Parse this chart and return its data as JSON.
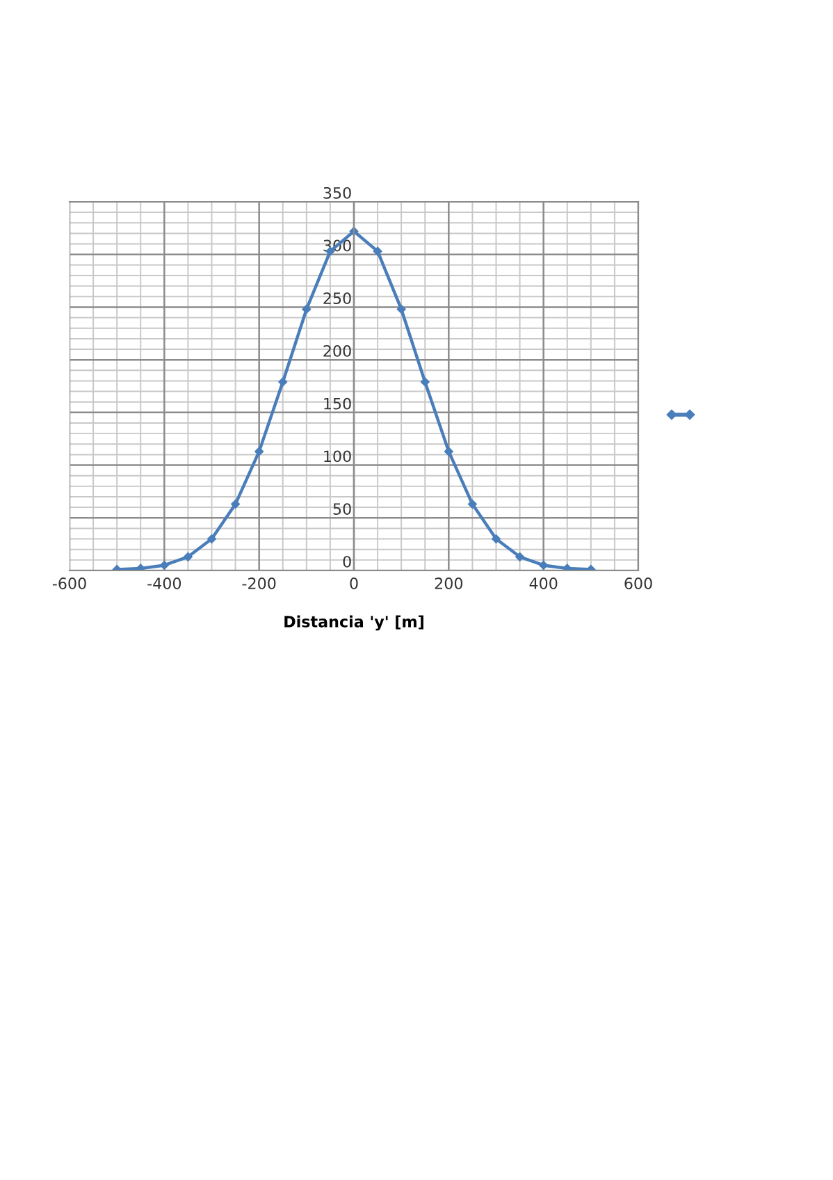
{
  "chart_data": {
    "type": "line",
    "xlabel": "Distancia 'y' [m]",
    "x": [
      -500,
      -450,
      -400,
      -350,
      -300,
      -250,
      -200,
      -150,
      -100,
      -50,
      0,
      50,
      100,
      150,
      200,
      250,
      300,
      350,
      400,
      450,
      500
    ],
    "series": [
      {
        "color": "#4a7ebb",
        "values": [
          1,
          2,
          5,
          13,
          30,
          63,
          113,
          179,
          248,
          303,
          322,
          303,
          248,
          179,
          113,
          63,
          30,
          13,
          5,
          2,
          1
        ]
      }
    ],
    "xlim": [
      -600,
      600
    ],
    "xticks": [
      {
        "value": -600,
        "label": "-600"
      },
      -400,
      -200,
      0,
      200,
      400,
      600
    ],
    "ylim": [
      0,
      350
    ],
    "yticks": [
      0,
      50,
      100,
      150,
      200,
      250,
      300,
      350
    ],
    "grid": true,
    "marker": "diamond",
    "line_style": "solid"
  }
}
